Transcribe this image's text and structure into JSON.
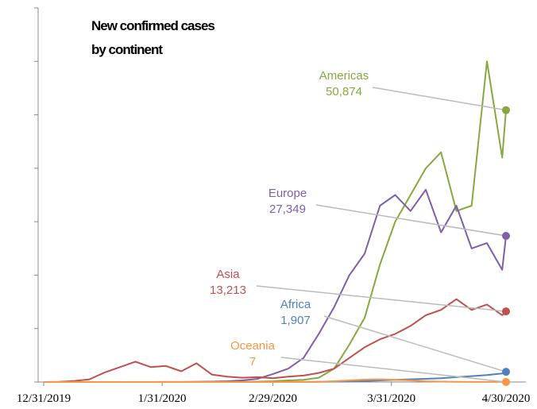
{
  "chart_data": {
    "type": "line",
    "title": "New confirmed cases",
    "subtitle": "by continent",
    "x": [
      "12/31/2019",
      "1/4/2020",
      "1/8/2020",
      "1/12/2020",
      "1/16/2020",
      "1/20/2020",
      "1/24/2020",
      "1/28/2020",
      "2/1/2020",
      "2/5/2020",
      "2/9/2020",
      "2/13/2020",
      "2/17/2020",
      "2/21/2020",
      "2/25/2020",
      "2/29/2020",
      "3/4/2020",
      "3/8/2020",
      "3/12/2020",
      "3/16/2020",
      "3/20/2020",
      "3/24/2020",
      "3/28/2020",
      "4/1/2020",
      "4/5/2020",
      "4/9/2020",
      "4/13/2020",
      "4/17/2020",
      "4/21/2020",
      "4/25/2020",
      "4/29/2020",
      "4/30/2020"
    ],
    "xticks": [
      "12/31/2019",
      "1/31/2020",
      "2/29/2020",
      "3/31/2020",
      "4/30/2020"
    ],
    "ylim": [
      0,
      70000
    ],
    "yticks": [
      0,
      10000,
      20000,
      30000,
      40000,
      50000,
      60000,
      70000
    ],
    "series": [
      {
        "name": "Americas",
        "color": "#86a83f",
        "values": [
          0,
          0,
          0,
          0,
          0,
          0,
          0,
          0,
          5,
          5,
          10,
          20,
          30,
          50,
          80,
          150,
          300,
          400,
          800,
          2500,
          7000,
          12000,
          22000,
          30000,
          35000,
          40000,
          43000,
          32000,
          33000,
          60000,
          42000,
          50874
        ],
        "value_labels": [
          null,
          null,
          null,
          null,
          null,
          null,
          null,
          null,
          null,
          null,
          null,
          null,
          null,
          null,
          null,
          null,
          null,
          null,
          null,
          null,
          null,
          null,
          null,
          null,
          null,
          null,
          null,
          null,
          null,
          null,
          null,
          "50,874"
        ]
      },
      {
        "name": "Europe",
        "color": "#7e5fa8",
        "values": [
          0,
          0,
          0,
          0,
          0,
          0,
          0,
          5,
          10,
          20,
          50,
          80,
          150,
          300,
          600,
          1500,
          2500,
          4500,
          9000,
          14000,
          20000,
          24000,
          33000,
          35000,
          32000,
          36000,
          28000,
          33000,
          25000,
          26000,
          21000,
          27349
        ],
        "value_labels": [
          null,
          null,
          null,
          null,
          null,
          null,
          null,
          null,
          null,
          null,
          null,
          null,
          null,
          null,
          null,
          null,
          null,
          null,
          null,
          null,
          null,
          null,
          null,
          null,
          null,
          null,
          null,
          null,
          null,
          null,
          null,
          "27,349"
        ]
      },
      {
        "name": "Asia",
        "color": "#c0504d",
        "values": [
          0,
          50,
          200,
          500,
          1800,
          2800,
          3800,
          2800,
          3000,
          2000,
          3500,
          1400,
          1000,
          800,
          900,
          700,
          1000,
          1200,
          1700,
          2500,
          4500,
          6500,
          8000,
          9000,
          10500,
          12500,
          13500,
          15500,
          13500,
          14500,
          12500,
          13213
        ],
        "value_labels": [
          null,
          null,
          null,
          null,
          null,
          null,
          null,
          null,
          null,
          null,
          null,
          null,
          null,
          null,
          null,
          null,
          null,
          null,
          null,
          null,
          null,
          null,
          null,
          null,
          null,
          null,
          null,
          null,
          null,
          null,
          null,
          "13,213"
        ]
      },
      {
        "name": "Africa",
        "color": "#4f81bd",
        "values": [
          0,
          0,
          0,
          0,
          0,
          0,
          0,
          0,
          0,
          0,
          0,
          0,
          0,
          0,
          1,
          3,
          10,
          20,
          40,
          80,
          150,
          200,
          300,
          400,
          500,
          600,
          700,
          900,
          1100,
          1300,
          1600,
          1907
        ],
        "value_labels": [
          null,
          null,
          null,
          null,
          null,
          null,
          null,
          null,
          null,
          null,
          null,
          null,
          null,
          null,
          null,
          null,
          null,
          null,
          null,
          null,
          null,
          null,
          null,
          null,
          null,
          null,
          null,
          null,
          null,
          null,
          null,
          "1,907"
        ]
      },
      {
        "name": "Oceania",
        "color": "#f79646",
        "values": [
          0,
          0,
          0,
          0,
          0,
          0,
          0,
          0,
          0,
          0,
          0,
          0,
          0,
          0,
          0,
          0,
          0,
          10,
          40,
          150,
          300,
          450,
          500,
          400,
          300,
          150,
          80,
          40,
          20,
          15,
          10,
          7
        ]
      }
    ]
  }
}
